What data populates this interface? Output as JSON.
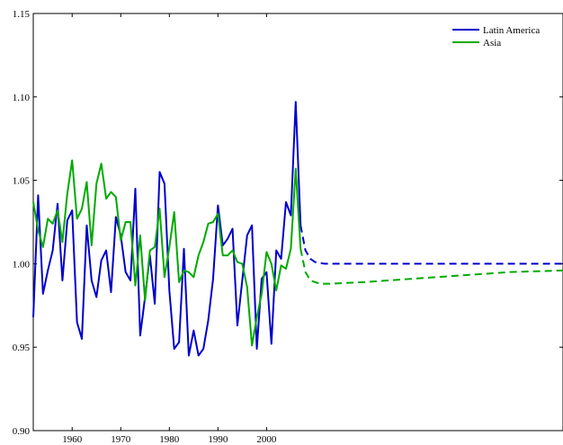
{
  "chart_data": {
    "type": "line",
    "title": "",
    "xlabel": "",
    "ylabel": "",
    "xlim": [
      1952,
      2061
    ],
    "ylim": [
      0.9,
      1.15
    ],
    "x_ticks": [
      1960,
      1970,
      1980,
      1990,
      2000
    ],
    "y_ticks": [
      0.9,
      0.95,
      1.0,
      1.05,
      1.1,
      1.15
    ],
    "y_tick_labels": [
      "0.90",
      "0.95",
      "1.00",
      "1.05",
      "1.10",
      "1.15"
    ],
    "grid": false,
    "legend_position": "top-right",
    "series": [
      {
        "name": "Latin America",
        "color": "#0000cc",
        "x": [
          1952,
          1953,
          1954,
          1955,
          1956,
          1957,
          1958,
          1959,
          1960,
          1961,
          1962,
          1963,
          1964,
          1965,
          1966,
          1967,
          1968,
          1969,
          1970,
          1971,
          1972,
          1973,
          1974,
          1975,
          1976,
          1977,
          1978,
          1979,
          1980,
          1981,
          1982,
          1983,
          1984,
          1985,
          1986,
          1987,
          1988,
          1989,
          1990,
          1991,
          1992,
          1993,
          1994,
          1995,
          1996,
          1997,
          1998,
          1999,
          2000,
          2001,
          2002,
          2003,
          2004,
          2005,
          2006,
          2007
        ],
        "values": [
          0.968,
          1.041,
          0.982,
          0.996,
          1.008,
          1.036,
          0.99,
          1.026,
          1.032,
          0.965,
          0.955,
          1.023,
          0.99,
          0.98,
          1.002,
          1.008,
          0.983,
          1.028,
          1.017,
          0.995,
          0.99,
          1.045,
          0.957,
          0.98,
          1.005,
          0.976,
          1.055,
          1.048,
          0.984,
          0.949,
          0.953,
          1.009,
          0.945,
          0.96,
          0.945,
          0.949,
          0.966,
          0.991,
          1.035,
          1.011,
          1.015,
          1.021,
          0.963,
          0.99,
          1.017,
          1.023,
          0.949,
          0.991,
          0.995,
          0.952,
          1.008,
          1.003,
          1.037,
          1.029,
          1.097,
          1.023
        ],
        "projection": {
          "style": "dashed",
          "x": [
            2007,
            2008,
            2009,
            2010,
            2012,
            2016,
            2061
          ],
          "values": [
            1.023,
            1.008,
            1.003,
            1.001,
            1.0,
            1.0,
            1.0
          ]
        }
      },
      {
        "name": "Asia",
        "color": "#00aa00",
        "x": [
          1952,
          1953,
          1954,
          1955,
          1956,
          1957,
          1958,
          1959,
          1960,
          1961,
          1962,
          1963,
          1964,
          1965,
          1966,
          1967,
          1968,
          1969,
          1970,
          1971,
          1972,
          1973,
          1974,
          1975,
          1976,
          1977,
          1978,
          1979,
          1980,
          1981,
          1982,
          1983,
          1984,
          1985,
          1986,
          1987,
          1988,
          1989,
          1990,
          1991,
          1992,
          1993,
          1994,
          1995,
          1996,
          1997,
          1998,
          1999,
          2000,
          2001,
          2002,
          2003,
          2004,
          2005,
          2006,
          2007
        ],
        "values": [
          1.037,
          1.02,
          1.01,
          1.027,
          1.024,
          1.032,
          1.013,
          1.042,
          1.062,
          1.027,
          1.033,
          1.049,
          1.011,
          1.048,
          1.06,
          1.039,
          1.043,
          1.04,
          1.014,
          1.025,
          1.025,
          0.987,
          1.017,
          0.978,
          1.008,
          1.01,
          1.033,
          0.992,
          1.01,
          1.031,
          0.989,
          0.996,
          0.995,
          0.992,
          1.005,
          1.013,
          1.024,
          1.025,
          1.03,
          1.005,
          1.005,
          1.008,
          1.001,
          1.0,
          0.986,
          0.951,
          0.968,
          0.982,
          1.007,
          1.0,
          0.984,
          0.999,
          0.997,
          1.009,
          1.057,
          1.009
        ],
        "projection": {
          "style": "dashed",
          "x": [
            2007,
            2008,
            2009,
            2011,
            2013,
            2020,
            2030,
            2040,
            2050,
            2061
          ],
          "values": [
            1.009,
            0.995,
            0.99,
            0.988,
            0.988,
            0.989,
            0.991,
            0.993,
            0.995,
            0.996
          ]
        }
      }
    ]
  }
}
